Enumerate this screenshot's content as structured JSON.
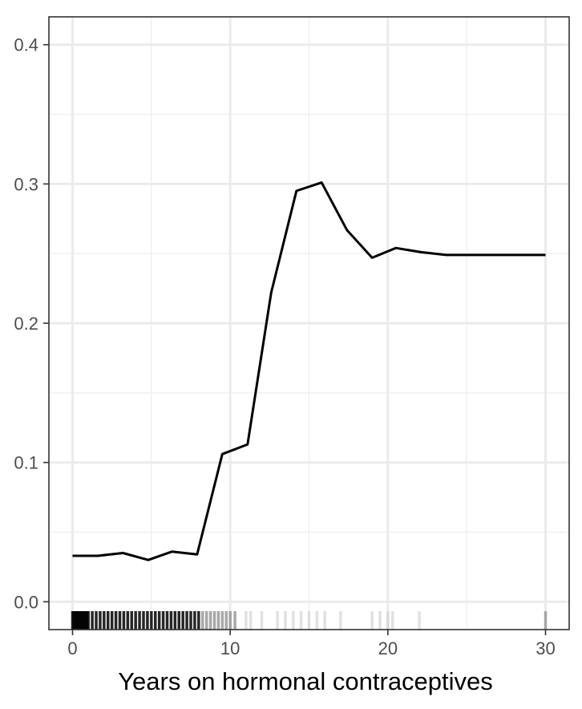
{
  "chart_data": {
    "type": "line",
    "title": "",
    "xlabel": "Years on hormonal contraceptives",
    "ylabel": "",
    "xlim": [
      -1.5,
      31.5
    ],
    "ylim": [
      -0.02,
      0.42
    ],
    "grid": true,
    "legend": "none",
    "x_ticks": [
      0,
      10,
      20,
      30
    ],
    "x_tick_labels": [
      "0",
      "10",
      "20",
      "30"
    ],
    "y_ticks": [
      0.0,
      0.1,
      0.2,
      0.3,
      0.4
    ],
    "y_tick_labels": [
      "0.0",
      "0.1",
      "0.2",
      "0.3",
      "0.4"
    ],
    "series": [
      {
        "x": [
          0,
          1.6,
          3.2,
          4.8,
          6.3,
          7.9,
          9.5,
          11.1,
          12.6,
          14.2,
          15.8,
          17.4,
          19.0,
          20.5,
          22.1,
          23.7,
          25.3,
          26.8,
          28.4,
          30.0
        ],
        "y": [
          0.033,
          0.033,
          0.035,
          0.03,
          0.036,
          0.034,
          0.106,
          0.113,
          0.222,
          0.295,
          0.301,
          0.267,
          0.247,
          0.254,
          0.251,
          0.249,
          0.249,
          0.249,
          0.249,
          0.249
        ]
      }
    ],
    "rug": {
      "values": [
        0,
        0.08,
        0.17,
        0.25,
        0.33,
        0.42,
        0.5,
        0.58,
        0.67,
        0.75,
        0.83,
        0.92,
        1,
        1.25,
        1.5,
        1.75,
        2,
        2.25,
        2.5,
        2.75,
        3,
        3.25,
        3.5,
        3.75,
        4,
        4.25,
        4.5,
        4.75,
        5,
        5.25,
        5.5,
        5.75,
        6,
        6.25,
        6.5,
        6.75,
        7,
        7.25,
        7.5,
        7.75,
        8,
        8.25,
        8.5,
        8.75,
        9,
        9.25,
        9.5,
        9.75,
        10,
        10.3,
        11,
        11.3,
        12,
        13,
        13.5,
        14,
        14.5,
        15,
        15.5,
        16,
        17,
        19,
        19.5,
        20,
        20.3,
        22,
        30
      ],
      "colors": [
        "#000000",
        "#6e6e6e",
        "#c8c8c8"
      ]
    }
  }
}
